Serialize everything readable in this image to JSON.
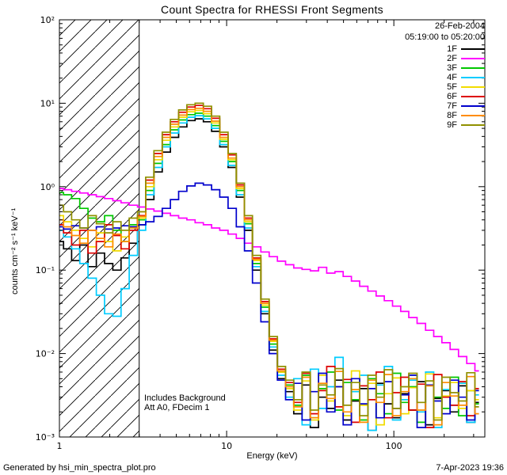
{
  "title": "Count Spectra for RHESSI Front Segments",
  "legend": {
    "date": "26-Feb-2004",
    "time_range": "05:19:00 to 05:20:00"
  },
  "annotations": {
    "line1": "Includes Background",
    "line2": "Att A0, FDecim 1"
  },
  "axes": {
    "x_label": "Energy (keV)",
    "y_label": "counts cm⁻² s⁻¹ keV⁻¹"
  },
  "footer": {
    "left": "Generated by hsi_min_spectra_plot.pro",
    "right": "7-Apr-2023 19:36"
  },
  "chart_data": {
    "type": "line",
    "mode": "histogram-steps",
    "title": "Count Spectra for RHESSI Front Segments",
    "xlabel": "Energy (keV)",
    "ylabel": "counts cm⁻² s⁻¹ keV⁻¹",
    "xscale": "log",
    "yscale": "log",
    "xlim": [
      1,
      350
    ],
    "ylim": [
      0.001,
      100
    ],
    "grid": false,
    "legend_position": "top-right",
    "hatched_region": {
      "x_start": 1,
      "x_end": 3
    },
    "x_ticks": [
      {
        "v": 1,
        "label": "1"
      },
      {
        "v": 10,
        "label": "10"
      },
      {
        "v": 100,
        "label": "100"
      }
    ],
    "y_ticks": [
      {
        "v": 100,
        "label": "10²"
      },
      {
        "v": 10,
        "label": "10¹"
      },
      {
        "v": 1,
        "label": "10⁰"
      },
      {
        "v": 0.1,
        "label": "10⁻¹"
      },
      {
        "v": 0.01,
        "label": "10⁻²"
      },
      {
        "v": 0.001,
        "label": "10⁻³"
      }
    ],
    "x": [
      1.0,
      1.12,
      1.25,
      1.4,
      1.57,
      1.76,
      1.97,
      2.21,
      2.47,
      2.77,
      3.1,
      3.47,
      3.89,
      4.36,
      4.88,
      5.47,
      6.12,
      6.86,
      7.68,
      8.6,
      9.63,
      10.8,
      12.1,
      13.5,
      15.1,
      17.0,
      19.0,
      21.3,
      23.8,
      26.7,
      29.9,
      33.5,
      37.5,
      42.0,
      47.0,
      52.7,
      59.0,
      66.1,
      74.0,
      82.9,
      92.8,
      104,
      116,
      130,
      146,
      164,
      183,
      205,
      230,
      258,
      289,
      323
    ],
    "series": [
      {
        "name": "1F",
        "color": "#000000",
        "values": [
          0.22,
          0.18,
          0.13,
          0.2,
          0.11,
          0.16,
          0.12,
          0.1,
          0.14,
          0.21,
          0.35,
          0.7,
          1.5,
          2.6,
          3.9,
          5.2,
          6.2,
          6.5,
          6.0,
          4.6,
          3.0,
          1.7,
          0.75,
          0.3,
          0.1,
          0.03,
          0.011,
          0.005,
          0.0035,
          0.0019,
          0.0042,
          0.0013,
          0.003,
          0.0022,
          0.0048,
          0.0016,
          0.0027,
          0.0038,
          0.0012,
          0.0044,
          0.0025,
          0.0017,
          0.0033,
          0.0021,
          0.0046,
          0.0014,
          0.0029,
          0.0036,
          0.002,
          0.0041,
          0.0015,
          0.0026
        ]
      },
      {
        "name": "2F",
        "color": "#FF00FF",
        "values": [
          0.95,
          0.92,
          0.88,
          0.84,
          0.8,
          0.76,
          0.72,
          0.68,
          0.64,
          0.6,
          0.57,
          0.54,
          0.51,
          0.48,
          0.45,
          0.42,
          0.4,
          0.37,
          0.35,
          0.32,
          0.3,
          0.27,
          0.24,
          0.21,
          0.19,
          0.165,
          0.145,
          0.128,
          0.116,
          0.106,
          0.102,
          0.098,
          0.108,
          0.092,
          0.096,
          0.084,
          0.074,
          0.064,
          0.056,
          0.049,
          0.043,
          0.037,
          0.032,
          0.027,
          0.023,
          0.019,
          0.016,
          0.0135,
          0.0112,
          0.0092,
          0.0076,
          0.0062
        ]
      },
      {
        "name": "3F",
        "color": "#00C800",
        "values": [
          0.85,
          0.8,
          0.72,
          0.55,
          0.42,
          0.38,
          0.45,
          0.3,
          0.22,
          0.35,
          0.4,
          0.9,
          1.9,
          3.2,
          4.8,
          6.3,
          7.3,
          7.6,
          7.0,
          5.4,
          3.5,
          2.0,
          0.9,
          0.36,
          0.12,
          0.036,
          0.013,
          0.006,
          0.0042,
          0.0024,
          0.0055,
          0.0017,
          0.0038,
          0.006,
          0.0021,
          0.0045,
          0.0028,
          0.0016,
          0.005,
          0.0033,
          0.0019,
          0.0058,
          0.0026,
          0.004,
          0.0015,
          0.0047,
          0.003,
          0.0022,
          0.0052,
          0.0018,
          0.0036,
          0.0025
        ]
      },
      {
        "name": "4F",
        "color": "#00CCFF",
        "values": [
          0.3,
          0.25,
          0.18,
          0.12,
          0.08,
          0.05,
          0.03,
          0.028,
          0.06,
          0.15,
          0.3,
          0.8,
          1.7,
          3.0,
          4.4,
          5.8,
          6.8,
          7.1,
          6.5,
          5.0,
          3.2,
          1.8,
          0.8,
          0.32,
          0.11,
          0.032,
          0.012,
          0.0055,
          0.003,
          0.005,
          0.0014,
          0.0065,
          0.0022,
          0.004,
          0.009,
          0.0018,
          0.0035,
          0.0055,
          0.0012,
          0.0042,
          0.007,
          0.0016,
          0.0028,
          0.0048,
          0.002,
          0.006,
          0.0013,
          0.0037,
          0.0024,
          0.0044,
          0.0015,
          0.0032
        ]
      },
      {
        "name": "5F",
        "color": "#F2DC00",
        "values": [
          0.45,
          0.38,
          0.3,
          0.24,
          0.19,
          0.28,
          0.22,
          0.17,
          0.25,
          0.33,
          0.42,
          1.0,
          2.1,
          3.6,
          5.2,
          6.8,
          7.9,
          8.2,
          7.5,
          5.8,
          3.7,
          2.1,
          0.95,
          0.38,
          0.13,
          0.038,
          0.014,
          0.006,
          0.0038,
          0.0021,
          0.0047,
          0.0016,
          0.0055,
          0.0027,
          0.004,
          0.0018,
          0.0062,
          0.0024,
          0.0044,
          0.0014,
          0.0033,
          0.0051,
          0.0019,
          0.0039,
          0.0026,
          0.0057,
          0.0017,
          0.0031,
          0.0045,
          0.0022,
          0.0036,
          0.0028
        ]
      },
      {
        "name": "6F",
        "color": "#DD0000",
        "values": [
          0.35,
          0.28,
          0.2,
          0.3,
          0.16,
          0.22,
          0.35,
          0.26,
          0.18,
          0.3,
          0.45,
          1.2,
          2.5,
          4.2,
          6.0,
          7.8,
          9.0,
          9.4,
          8.6,
          6.6,
          4.2,
          2.4,
          1.05,
          0.42,
          0.14,
          0.042,
          0.015,
          0.0065,
          0.0045,
          0.0026,
          0.0058,
          0.0019,
          0.0036,
          0.007,
          0.0023,
          0.0049,
          0.0015,
          0.0041,
          0.0028,
          0.006,
          0.0017,
          0.0034,
          0.0052,
          0.0021,
          0.0043,
          0.0013,
          0.0056,
          0.003,
          0.0024,
          0.0046,
          0.0018,
          0.0038
        ]
      },
      {
        "name": "7F",
        "color": "#0000CC",
        "values": [
          0.33,
          0.31,
          0.34,
          0.32,
          0.3,
          0.33,
          0.31,
          0.32,
          0.34,
          0.33,
          0.35,
          0.38,
          0.44,
          0.55,
          0.7,
          0.88,
          1.02,
          1.1,
          1.05,
          0.92,
          0.75,
          0.55,
          0.33,
          0.17,
          0.07,
          0.024,
          0.01,
          0.0048,
          0.0028,
          0.0044,
          0.0016,
          0.0035,
          0.0058,
          0.002,
          0.004,
          0.0014,
          0.005,
          0.0025,
          0.0038,
          0.0017,
          0.0046,
          0.0022,
          0.0032,
          0.0055,
          0.0013,
          0.0042,
          0.0027,
          0.0019,
          0.0048,
          0.003,
          0.0016,
          0.0036
        ]
      },
      {
        "name": "8F",
        "color": "#FF8C00",
        "values": [
          0.4,
          0.33,
          0.26,
          0.21,
          0.3,
          0.24,
          0.19,
          0.27,
          0.22,
          0.32,
          0.44,
          1.1,
          2.3,
          3.9,
          5.6,
          7.2,
          8.4,
          8.7,
          8.0,
          6.1,
          3.9,
          2.2,
          1.0,
          0.4,
          0.135,
          0.04,
          0.0145,
          0.0062,
          0.004,
          0.0023,
          0.0052,
          0.0017,
          0.0044,
          0.0029,
          0.0061,
          0.002,
          0.0037,
          0.0015,
          0.0048,
          0.0026,
          0.0056,
          0.0018,
          0.0035,
          0.005,
          0.0021,
          0.0041,
          0.0014,
          0.0045,
          0.0031,
          0.0024,
          0.0053,
          0.0019
        ]
      },
      {
        "name": "9F",
        "color": "#909000",
        "values": [
          0.6,
          0.5,
          0.4,
          0.32,
          0.45,
          0.36,
          0.28,
          0.38,
          0.3,
          0.42,
          0.5,
          1.3,
          2.7,
          4.5,
          6.4,
          8.3,
          9.6,
          10.0,
          9.2,
          7.0,
          4.5,
          2.5,
          1.1,
          0.45,
          0.15,
          0.045,
          0.016,
          0.007,
          0.0048,
          0.0028,
          0.006,
          0.0021,
          0.0042,
          0.0032,
          0.0066,
          0.0024,
          0.0045,
          0.0018,
          0.0055,
          0.003,
          0.0064,
          0.0022,
          0.004,
          0.0058,
          0.0026,
          0.0047,
          0.0016,
          0.0052,
          0.0034,
          0.0027,
          0.0059,
          0.0023
        ]
      }
    ]
  }
}
